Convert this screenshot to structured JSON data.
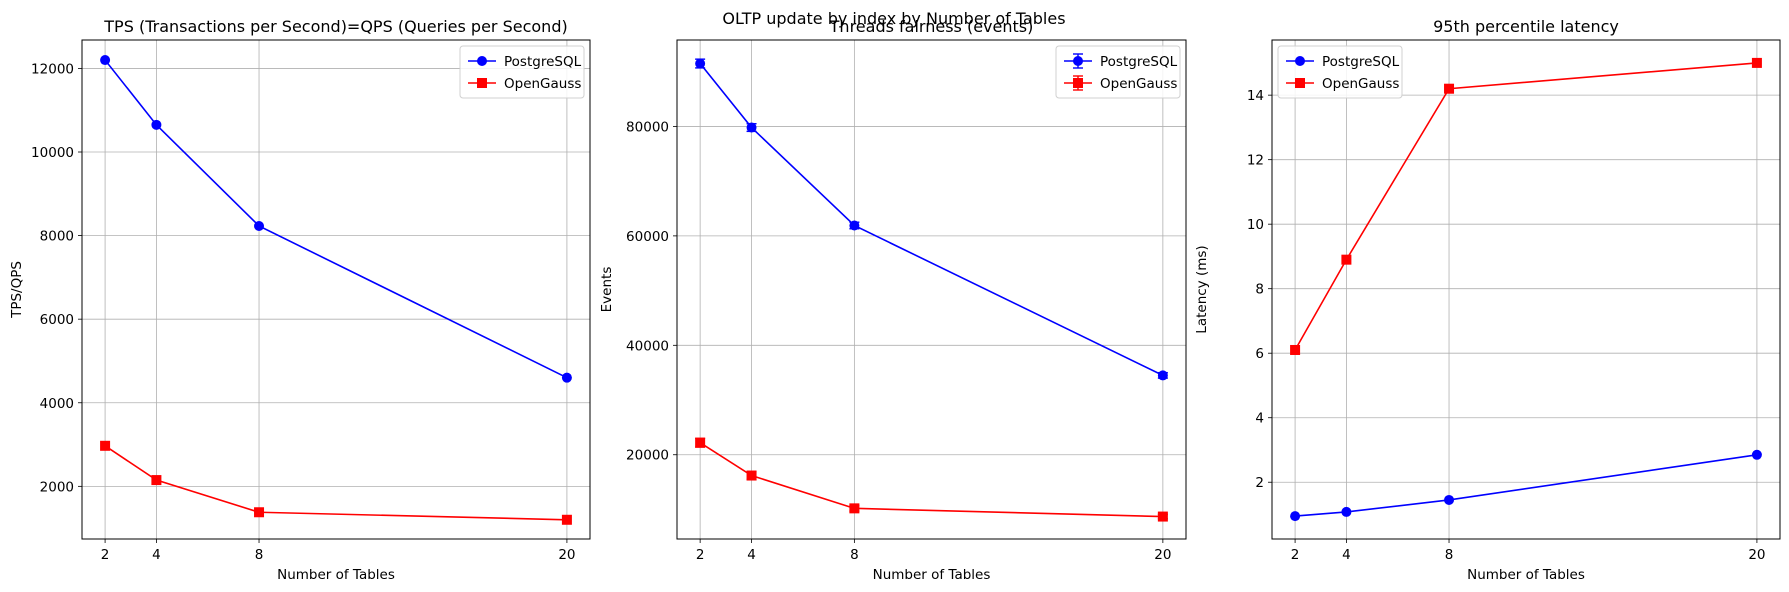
{
  "figure": {
    "title": "OLTP update by index by Number of Tables"
  },
  "colors": {
    "PostgreSQL": "#0000ff",
    "OpenGauss": "#ff0000"
  },
  "chart_data": [
    {
      "type": "line",
      "title": "TPS (Transactions per Second)=QPS (Queries per Second)",
      "xlabel": "Number of Tables",
      "ylabel": "TPS/QPS",
      "x": [
        2,
        4,
        8,
        20
      ],
      "xticks": [
        2,
        4,
        8,
        20
      ],
      "yticks": [
        2000,
        4000,
        6000,
        8000,
        10000,
        12000
      ],
      "xlim": [
        1.1,
        20.9
      ],
      "ylim": [
        740,
        12680
      ],
      "grid": true,
      "legend": "upper-right",
      "series": [
        {
          "name": "PostgreSQL",
          "marker": "circle",
          "values": [
            12200,
            10650,
            8230,
            4600
          ]
        },
        {
          "name": "OpenGauss",
          "marker": "square",
          "values": [
            2970,
            2150,
            1380,
            1200
          ]
        }
      ]
    },
    {
      "type": "line",
      "title": "Threads fairness (events)",
      "xlabel": "Number of Tables",
      "ylabel": "Events",
      "x": [
        2,
        4,
        8,
        20
      ],
      "xticks": [
        2,
        4,
        8,
        20
      ],
      "yticks": [
        20000,
        40000,
        60000,
        80000
      ],
      "xlim": [
        1.1,
        20.9
      ],
      "ylim": [
        4600,
        95800
      ],
      "grid": true,
      "legend": "upper-right",
      "error_bars": true,
      "series": [
        {
          "name": "PostgreSQL",
          "marker": "circle",
          "values": [
            91500,
            79800,
            61900,
            34500
          ],
          "errors": [
            800,
            700,
            600,
            500
          ]
        },
        {
          "name": "OpenGauss",
          "marker": "square",
          "values": [
            22200,
            16200,
            10200,
            8700
          ],
          "errors": [
            800,
            700,
            500,
            400
          ]
        }
      ]
    },
    {
      "type": "line",
      "title": "95th percentile latency",
      "xlabel": "Number of Tables",
      "ylabel": "Latency (ms)",
      "x": [
        2,
        4,
        8,
        20
      ],
      "xticks": [
        2,
        4,
        8,
        20
      ],
      "yticks": [
        2,
        4,
        6,
        8,
        10,
        12,
        14
      ],
      "xlim": [
        1.1,
        20.9
      ],
      "ylim": [
        0.24,
        15.71
      ],
      "grid": true,
      "legend": "upper-left",
      "series": [
        {
          "name": "PostgreSQL",
          "marker": "circle",
          "values": [
            0.95,
            1.08,
            1.45,
            2.85
          ]
        },
        {
          "name": "OpenGauss",
          "marker": "square",
          "values": [
            6.1,
            8.9,
            14.2,
            15.0
          ]
        }
      ]
    }
  ]
}
